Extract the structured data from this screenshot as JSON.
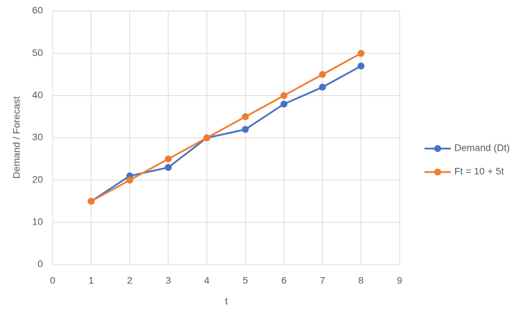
{
  "chart_data": {
    "type": "line",
    "x_label": "t",
    "y_label": "Demand / Forecast",
    "x": [
      1,
      2,
      3,
      4,
      5,
      6,
      7,
      8
    ],
    "series": [
      {
        "name": "Demand (Dt)",
        "color": "#4472c4",
        "values": [
          15,
          21,
          23,
          30,
          32,
          38,
          42,
          47
        ]
      },
      {
        "name": "Ft = 10 + 5t",
        "color": "#ed7d31",
        "values": [
          15,
          20,
          25,
          30,
          35,
          40,
          45,
          50
        ]
      }
    ],
    "xlim": [
      0,
      9
    ],
    "xticks": [
      0,
      1,
      2,
      3,
      4,
      5,
      6,
      7,
      8,
      9
    ],
    "ylim": [
      0,
      60
    ],
    "yticks": [
      0,
      10,
      20,
      30,
      40,
      50,
      60
    ],
    "grid": true,
    "legend": "right",
    "markers": true
  }
}
